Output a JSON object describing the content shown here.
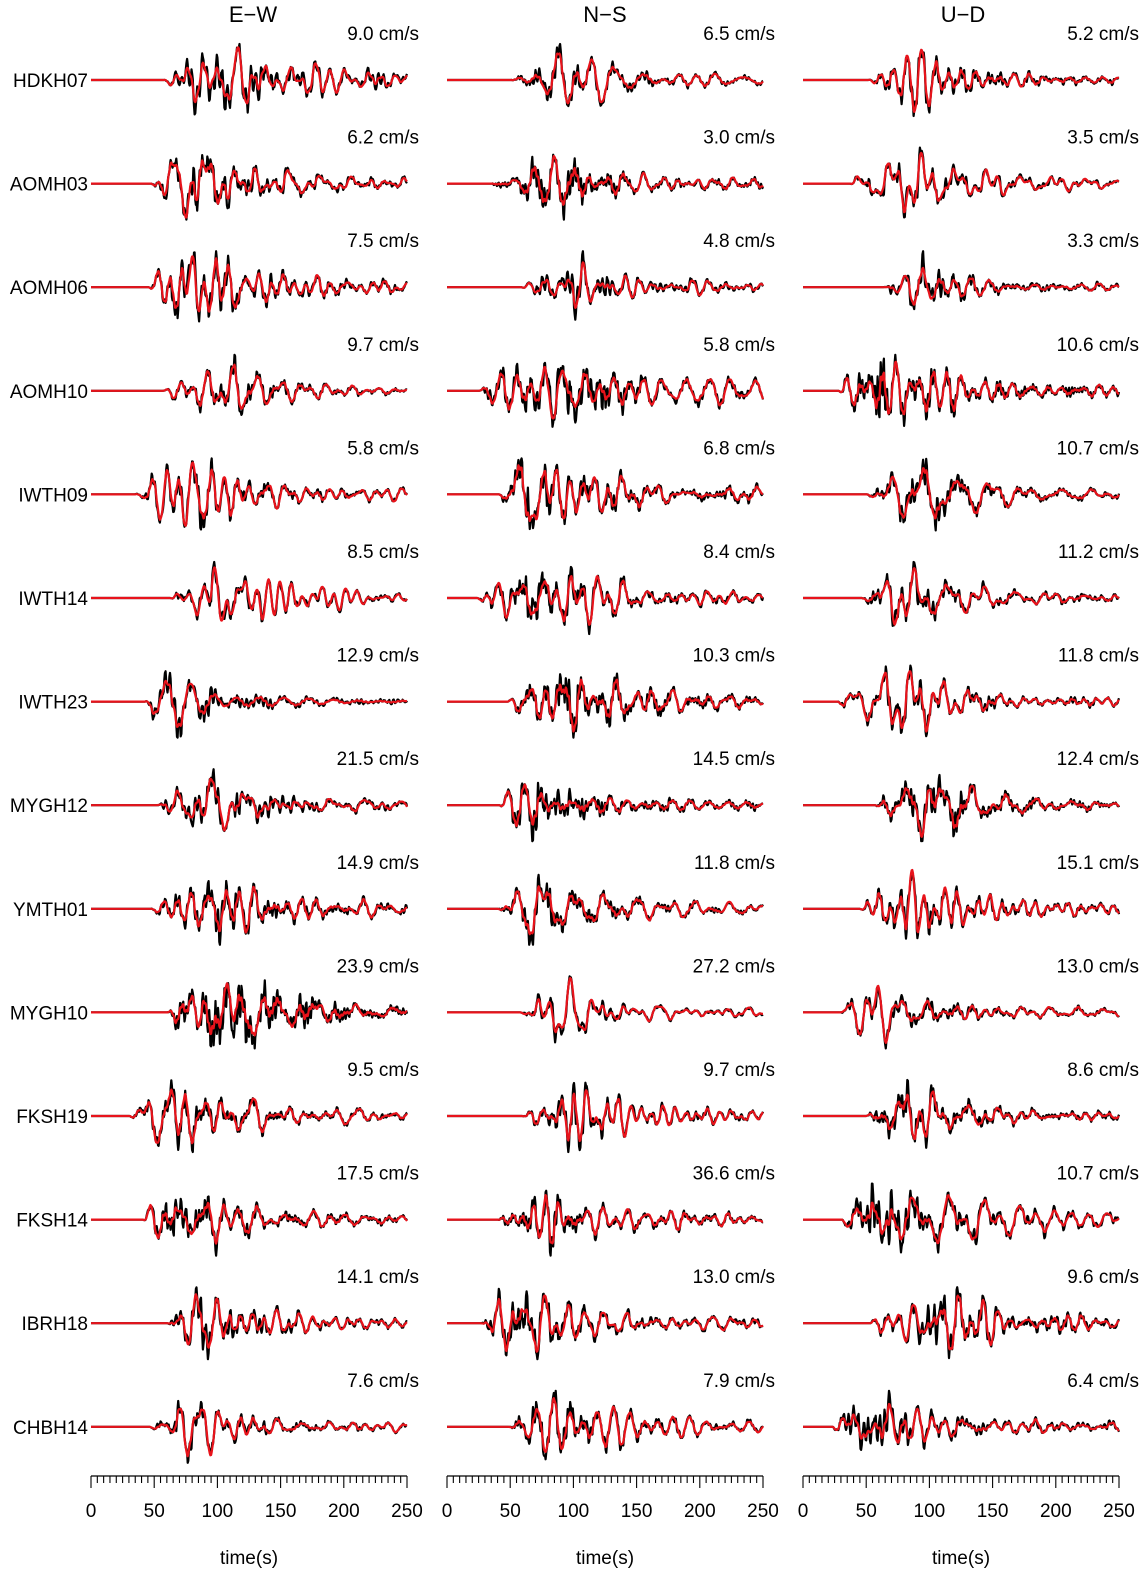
{
  "chart_data": {
    "type": "line",
    "columns": [
      "E−W",
      "N−S",
      "U−D"
    ],
    "stations": [
      "HDKH07",
      "AOMH03",
      "AOMH06",
      "AOMH10",
      "IWTH09",
      "IWTH14",
      "IWTH23",
      "MYGH12",
      "YMTH01",
      "MYGH10",
      "FKSH19",
      "FKSH14",
      "IBRH18",
      "CHBH14"
    ],
    "peak_velocities": [
      [
        "9.0 cm/s",
        "6.5 cm/s",
        "5.2 cm/s"
      ],
      [
        "6.2 cm/s",
        "3.0 cm/s",
        "3.5 cm/s"
      ],
      [
        "7.5 cm/s",
        "4.8 cm/s",
        "3.3 cm/s"
      ],
      [
        "9.7 cm/s",
        "5.8 cm/s",
        "10.6 cm/s"
      ],
      [
        "5.8 cm/s",
        "6.8 cm/s",
        "10.7 cm/s"
      ],
      [
        "8.5 cm/s",
        "8.4 cm/s",
        "11.2 cm/s"
      ],
      [
        "12.9 cm/s",
        "10.3 cm/s",
        "11.8 cm/s"
      ],
      [
        "21.5 cm/s",
        "14.5 cm/s",
        "12.4 cm/s"
      ],
      [
        "14.9 cm/s",
        "11.8 cm/s",
        "15.1 cm/s"
      ],
      [
        "23.9 cm/s",
        "27.2 cm/s",
        "13.0 cm/s"
      ],
      [
        "9.5 cm/s",
        "9.7 cm/s",
        "8.6 cm/s"
      ],
      [
        "17.5 cm/s",
        "36.6 cm/s",
        "10.7 cm/s"
      ],
      [
        "14.1 cm/s",
        "13.0 cm/s",
        "9.6 cm/s"
      ],
      [
        "7.6 cm/s",
        "7.9 cm/s",
        "6.4 cm/s"
      ]
    ],
    "xlabel": "time(s)",
    "xlim": [
      0,
      250
    ],
    "x_ticks": [
      0,
      50,
      100,
      150,
      200,
      250
    ],
    "x_tick_labels": [
      "0",
      "50",
      "100",
      "150",
      "200",
      "250"
    ],
    "minor_tick_step": 5,
    "series_colors": {
      "observed": "#000000",
      "synthetic": "#e8131b"
    },
    "grid": false,
    "legend": "none"
  }
}
